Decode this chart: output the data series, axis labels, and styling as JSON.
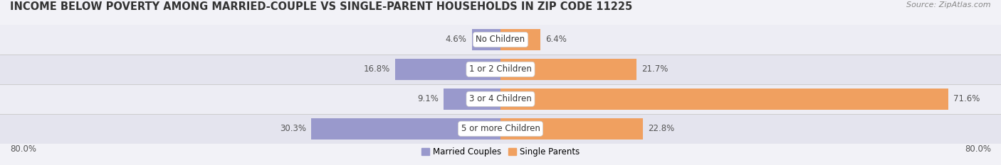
{
  "title": "INCOME BELOW POVERTY AMONG MARRIED-COUPLE VS SINGLE-PARENT HOUSEHOLDS IN ZIP CODE 11225",
  "source": "Source: ZipAtlas.com",
  "categories": [
    "No Children",
    "1 or 2 Children",
    "3 or 4 Children",
    "5 or more Children"
  ],
  "married_values": [
    4.6,
    16.8,
    9.1,
    30.3
  ],
  "single_values": [
    6.4,
    21.7,
    71.6,
    22.8
  ],
  "married_color": "#9999cc",
  "single_color": "#f0a060",
  "xlim_abs": 80.0,
  "title_fontsize": 10.5,
  "source_fontsize": 8,
  "bar_label_fontsize": 8.5,
  "cat_label_fontsize": 8.5,
  "legend_fontsize": 8.5,
  "bar_height": 0.72,
  "row_colors": [
    "#ededf4",
    "#e4e4ee"
  ],
  "background_color": "#f2f2f7",
  "value_color": "#555555",
  "cat_label_color": "#333333"
}
